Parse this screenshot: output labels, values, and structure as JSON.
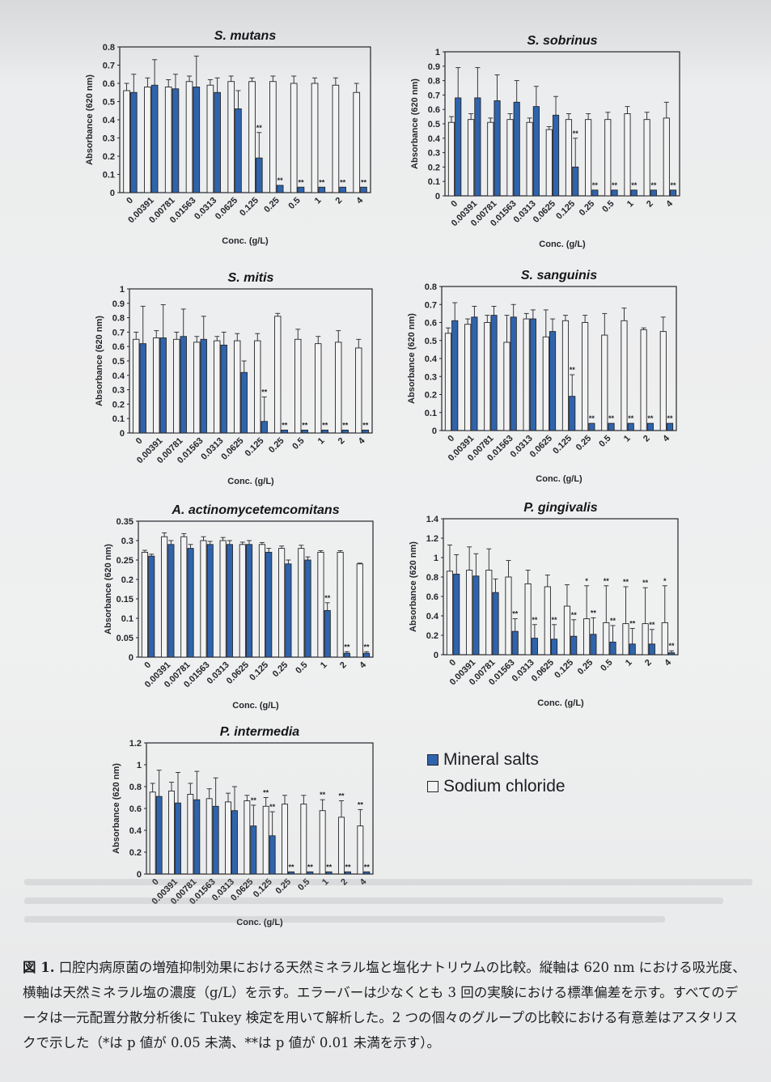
{
  "colors": {
    "mineral": "#2f64ad",
    "sodium": "#f3f3f3",
    "axis": "#25262b"
  },
  "legend": {
    "mineral_label": "Mineral salts",
    "sodium_label": "Sodium chloride"
  },
  "caption": {
    "label": "図 1.",
    "text": " 口腔内病原菌の増殖抑制効果における天然ミネラル塩と塩化ナトリウムの比較。縦軸は 620 nm における吸光度、横軸は天然ミネラル塩の濃度（g/L）を示す。エラーバーは少なくとも 3 回の実験における標準偏差を示す。すべてのデータは一元配置分散分析後に Tukey 検定を用いて解析した。2 つの個々のグループの比較における有意差はアスタリスクで示した（*は p 値が 0.05 未満、**は p 値が 0.01 未満を示す）。"
  },
  "chart_data": [
    {
      "type": "bar",
      "title": "S. mutans",
      "xlabel": "Conc. (g/L)",
      "ylabel": "Absorbance (620 nm)",
      "ylim": [
        0,
        0.8
      ],
      "yticks": [
        "0",
        "0.1",
        "0.2",
        "0.3",
        "0.4",
        "0.5",
        "0.6",
        "0.7",
        "0.8"
      ],
      "categories": [
        "0",
        "0.00391",
        "0.00781",
        "0.01563",
        "0.0313",
        "0.0625",
        "0.125",
        "0.25",
        "0.5",
        "1",
        "2",
        "4"
      ],
      "series": [
        {
          "name": "Sodium chloride",
          "values": [
            0.56,
            0.58,
            0.58,
            0.61,
            0.59,
            0.61,
            0.61,
            0.61,
            0.6,
            0.6,
            0.59,
            0.55
          ],
          "errors": [
            0.04,
            0.05,
            0.04,
            0.03,
            0.03,
            0.03,
            0.02,
            0.03,
            0.04,
            0.03,
            0.04,
            0.05
          ]
        },
        {
          "name": "Mineral salts",
          "values": [
            0.55,
            0.59,
            0.57,
            0.58,
            0.55,
            0.46,
            0.19,
            0.04,
            0.03,
            0.03,
            0.03,
            0.03
          ],
          "errors": [
            0.1,
            0.14,
            0.08,
            0.17,
            0.08,
            0.1,
            0.14,
            0.0,
            0.0,
            0.0,
            0.0,
            0.0
          ],
          "sig": [
            "",
            "",
            "",
            "",
            "",
            "",
            "**",
            "**",
            "**",
            "**",
            "**",
            "**"
          ]
        }
      ]
    },
    {
      "type": "bar",
      "title": "S. sobrinus",
      "xlabel": "Conc. (g/L)",
      "ylabel": "Absorbance (620 nm)",
      "ylim": [
        0,
        1
      ],
      "yticks": [
        "0",
        "0.1",
        "0.2",
        "0.3",
        "0.4",
        "0.5",
        "0.6",
        "0.7",
        "0.8",
        "0.9",
        "1"
      ],
      "categories": [
        "0",
        "0.00391",
        "0.00781",
        "0.01563",
        "0.0313",
        "0.0625",
        "0.125",
        "0.25",
        "0.5",
        "1",
        "2",
        "4"
      ],
      "series": [
        {
          "name": "Sodium chloride",
          "values": [
            0.51,
            0.53,
            0.51,
            0.53,
            0.51,
            0.46,
            0.53,
            0.53,
            0.53,
            0.57,
            0.53,
            0.54
          ],
          "errors": [
            0.04,
            0.04,
            0.03,
            0.04,
            0.03,
            0.02,
            0.04,
            0.04,
            0.05,
            0.05,
            0.05,
            0.11
          ]
        },
        {
          "name": "Mineral salts",
          "values": [
            0.68,
            0.68,
            0.66,
            0.65,
            0.62,
            0.56,
            0.2,
            0.04,
            0.04,
            0.04,
            0.04,
            0.04
          ],
          "errors": [
            0.21,
            0.21,
            0.18,
            0.15,
            0.14,
            0.13,
            0.2,
            0.0,
            0.0,
            0.0,
            0.0,
            0.0
          ],
          "sig": [
            "",
            "",
            "",
            "",
            "",
            "",
            "**",
            "**",
            "**",
            "**",
            "**",
            "**"
          ]
        }
      ]
    },
    {
      "type": "bar",
      "title": "S. mitis",
      "xlabel": "Conc. (g/L)",
      "ylabel": "Absorbance (620 nm)",
      "ylim": [
        0,
        1
      ],
      "yticks": [
        "0",
        "0.1",
        "0.2",
        "0.3",
        "0.4",
        "0.5",
        "0.6",
        "0.7",
        "0.8",
        "0.9",
        "1"
      ],
      "categories": [
        "0",
        "0.00391",
        "0.00781",
        "0.01563",
        "0.0313",
        "0.0625",
        "0.125",
        "0.25",
        "0.5",
        "1",
        "2",
        "4"
      ],
      "series": [
        {
          "name": "Sodium chloride",
          "values": [
            0.65,
            0.66,
            0.65,
            0.63,
            0.64,
            0.64,
            0.64,
            0.81,
            0.65,
            0.62,
            0.63,
            0.59
          ],
          "errors": [
            0.05,
            0.05,
            0.05,
            0.04,
            0.03,
            0.05,
            0.05,
            0.02,
            0.07,
            0.05,
            0.08,
            0.06
          ]
        },
        {
          "name": "Mineral salts",
          "values": [
            0.62,
            0.66,
            0.67,
            0.65,
            0.61,
            0.42,
            0.08,
            0.02,
            0.02,
            0.02,
            0.02,
            0.02
          ],
          "errors": [
            0.26,
            0.23,
            0.19,
            0.16,
            0.09,
            0.08,
            0.17,
            0.0,
            0.0,
            0.0,
            0.0,
            0.0
          ],
          "sig": [
            "",
            "",
            "",
            "",
            "",
            "",
            "**",
            "**",
            "**",
            "**",
            "**",
            "**"
          ]
        }
      ]
    },
    {
      "type": "bar",
      "title": "S. sanguinis",
      "xlabel": "Conc. (g/L)",
      "ylabel": "Absorbance (620 nm)",
      "ylim": [
        0,
        0.8
      ],
      "yticks": [
        "0",
        "0.1",
        "0.2",
        "0.3",
        "0.4",
        "0.5",
        "0.6",
        "0.7",
        "0.8"
      ],
      "categories": [
        "0",
        "0.00391",
        "0.00781",
        "0.01563",
        "0.0313",
        "0.0625",
        "0.125",
        "0.25",
        "0.5",
        "1",
        "2",
        "4"
      ],
      "series": [
        {
          "name": "Sodium chloride",
          "values": [
            0.54,
            0.59,
            0.6,
            0.49,
            0.62,
            0.52,
            0.61,
            0.6,
            0.53,
            0.61,
            0.56,
            0.55
          ],
          "errors": [
            0.03,
            0.03,
            0.04,
            0.15,
            0.03,
            0.15,
            0.03,
            0.04,
            0.12,
            0.07,
            0.01,
            0.08
          ]
        },
        {
          "name": "Mineral salts",
          "values": [
            0.61,
            0.63,
            0.64,
            0.63,
            0.62,
            0.55,
            0.19,
            0.04,
            0.04,
            0.04,
            0.04,
            0.04
          ],
          "errors": [
            0.1,
            0.06,
            0.05,
            0.07,
            0.05,
            0.07,
            0.12,
            0.0,
            0.0,
            0.0,
            0.0,
            0.0
          ],
          "sig": [
            "",
            "",
            "",
            "",
            "",
            "",
            "**",
            "**",
            "**",
            "**",
            "**",
            "**"
          ]
        }
      ]
    },
    {
      "type": "bar",
      "title": "A. actinomycetemcomitans",
      "xlabel": "Conc. (g/L)",
      "ylabel": "Absorbance (620 nm)",
      "ylim": [
        0,
        0.35
      ],
      "yticks": [
        "0",
        "0.05",
        "0.1",
        "0.15",
        "0.2",
        "0.25",
        "0.3",
        "0.35"
      ],
      "categories": [
        "0",
        "0.00391",
        "0.00781",
        "0.01563",
        "0.0313",
        "0.0625",
        "0.125",
        "0.25",
        "0.5",
        "1",
        "2",
        "4"
      ],
      "series": [
        {
          "name": "Sodium chloride",
          "values": [
            0.27,
            0.31,
            0.31,
            0.3,
            0.3,
            0.29,
            0.29,
            0.28,
            0.28,
            0.27,
            0.27,
            0.24
          ],
          "errors": [
            0.005,
            0.01,
            0.008,
            0.01,
            0.008,
            0.006,
            0.005,
            0.006,
            0.008,
            0.004,
            0.004,
            0.002
          ]
        },
        {
          "name": "Mineral salts",
          "values": [
            0.26,
            0.29,
            0.28,
            0.29,
            0.29,
            0.29,
            0.27,
            0.24,
            0.25,
            0.12,
            0.01,
            0.01
          ],
          "errors": [
            0.005,
            0.01,
            0.01,
            0.008,
            0.01,
            0.01,
            0.01,
            0.01,
            0.008,
            0.02,
            0.004,
            0.004
          ],
          "sig": [
            "",
            "",
            "",
            "",
            "",
            "",
            "",
            "",
            "",
            "**",
            "**",
            "**"
          ]
        }
      ]
    },
    {
      "type": "bar",
      "title": "P. gingivalis",
      "xlabel": "Conc. (g/L)",
      "ylabel": "Absorbance (620 nm)",
      "ylim": [
        0,
        1.4
      ],
      "yticks": [
        "0",
        "0.2",
        "0.4",
        "0.6",
        "0.8",
        "1",
        "1.2",
        "1.4"
      ],
      "categories": [
        "0",
        "0.00391",
        "0.00781",
        "0.01563",
        "0.0313",
        "0.0625",
        "0.125",
        "0.25",
        "0.5",
        "1",
        "2",
        "4"
      ],
      "series": [
        {
          "name": "Sodium chloride",
          "values": [
            0.86,
            0.87,
            0.87,
            0.8,
            0.73,
            0.7,
            0.5,
            0.37,
            0.33,
            0.32,
            0.32,
            0.33
          ],
          "errors": [
            0.27,
            0.24,
            0.22,
            0.17,
            0.14,
            0.12,
            0.22,
            0.34,
            0.38,
            0.38,
            0.37,
            0.38
          ]
        },
        {
          "name": "Mineral salts",
          "values": [
            0.83,
            0.81,
            0.64,
            0.24,
            0.17,
            0.16,
            0.19,
            0.21,
            0.13,
            0.11,
            0.11,
            0.02
          ],
          "errors": [
            0.2,
            0.23,
            0.14,
            0.13,
            0.14,
            0.15,
            0.17,
            0.17,
            0.17,
            0.16,
            0.15,
            0.02
          ],
          "sig": [
            "",
            "",
            "",
            "**",
            "**",
            "**",
            "**",
            "**",
            "**",
            "**",
            "**",
            "**"
          ],
          "sig_nacl": [
            "",
            "",
            "",
            "",
            "",
            "",
            "",
            "*",
            "**",
            "**",
            "**",
            "*"
          ]
        }
      ]
    },
    {
      "type": "bar",
      "title": "P. intermedia",
      "xlabel": "Conc. (g/L)",
      "ylabel": "Absorbance (620 nm)",
      "ylim": [
        0,
        1.2
      ],
      "yticks": [
        "0",
        "0.2",
        "0.4",
        "0.6",
        "0.8",
        "1",
        "1.2"
      ],
      "categories": [
        "0",
        "0.00391",
        "0.00781",
        "0.01563",
        "0.0313",
        "0.0625",
        "0.125",
        "0.25",
        "0.5",
        "1",
        "2",
        "4"
      ],
      "series": [
        {
          "name": "Sodium chloride",
          "values": [
            0.75,
            0.76,
            0.73,
            0.69,
            0.66,
            0.67,
            0.62,
            0.64,
            0.64,
            0.58,
            0.52,
            0.44
          ],
          "errors": [
            0.08,
            0.08,
            0.1,
            0.09,
            0.08,
            0.05,
            0.08,
            0.08,
            0.08,
            0.1,
            0.15,
            0.15
          ]
        },
        {
          "name": "Mineral salts",
          "values": [
            0.71,
            0.65,
            0.68,
            0.62,
            0.58,
            0.44,
            0.35,
            0.02,
            0.02,
            0.02,
            0.02,
            0.02
          ],
          "errors": [
            0.24,
            0.28,
            0.26,
            0.26,
            0.22,
            0.19,
            0.22,
            0.0,
            0.0,
            0.0,
            0.0,
            0.0
          ],
          "sig": [
            "",
            "",
            "",
            "",
            "",
            "**",
            "**",
            "**",
            "**",
            "**",
            "**",
            "**"
          ],
          "sig_nacl": [
            "",
            "",
            "",
            "",
            "",
            "",
            "**",
            "",
            "",
            "**",
            "**",
            "**"
          ]
        }
      ]
    }
  ]
}
